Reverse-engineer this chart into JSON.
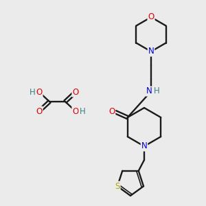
{
  "bg_color": "#ebebeb",
  "bond_color": "#1a1a1a",
  "atom_colors": {
    "O": "#dd0000",
    "N": "#0000cc",
    "S": "#aaaa00",
    "H": "#3a8080",
    "C": "#1a1a1a"
  },
  "figsize": [
    3.0,
    3.0
  ],
  "dpi": 100
}
